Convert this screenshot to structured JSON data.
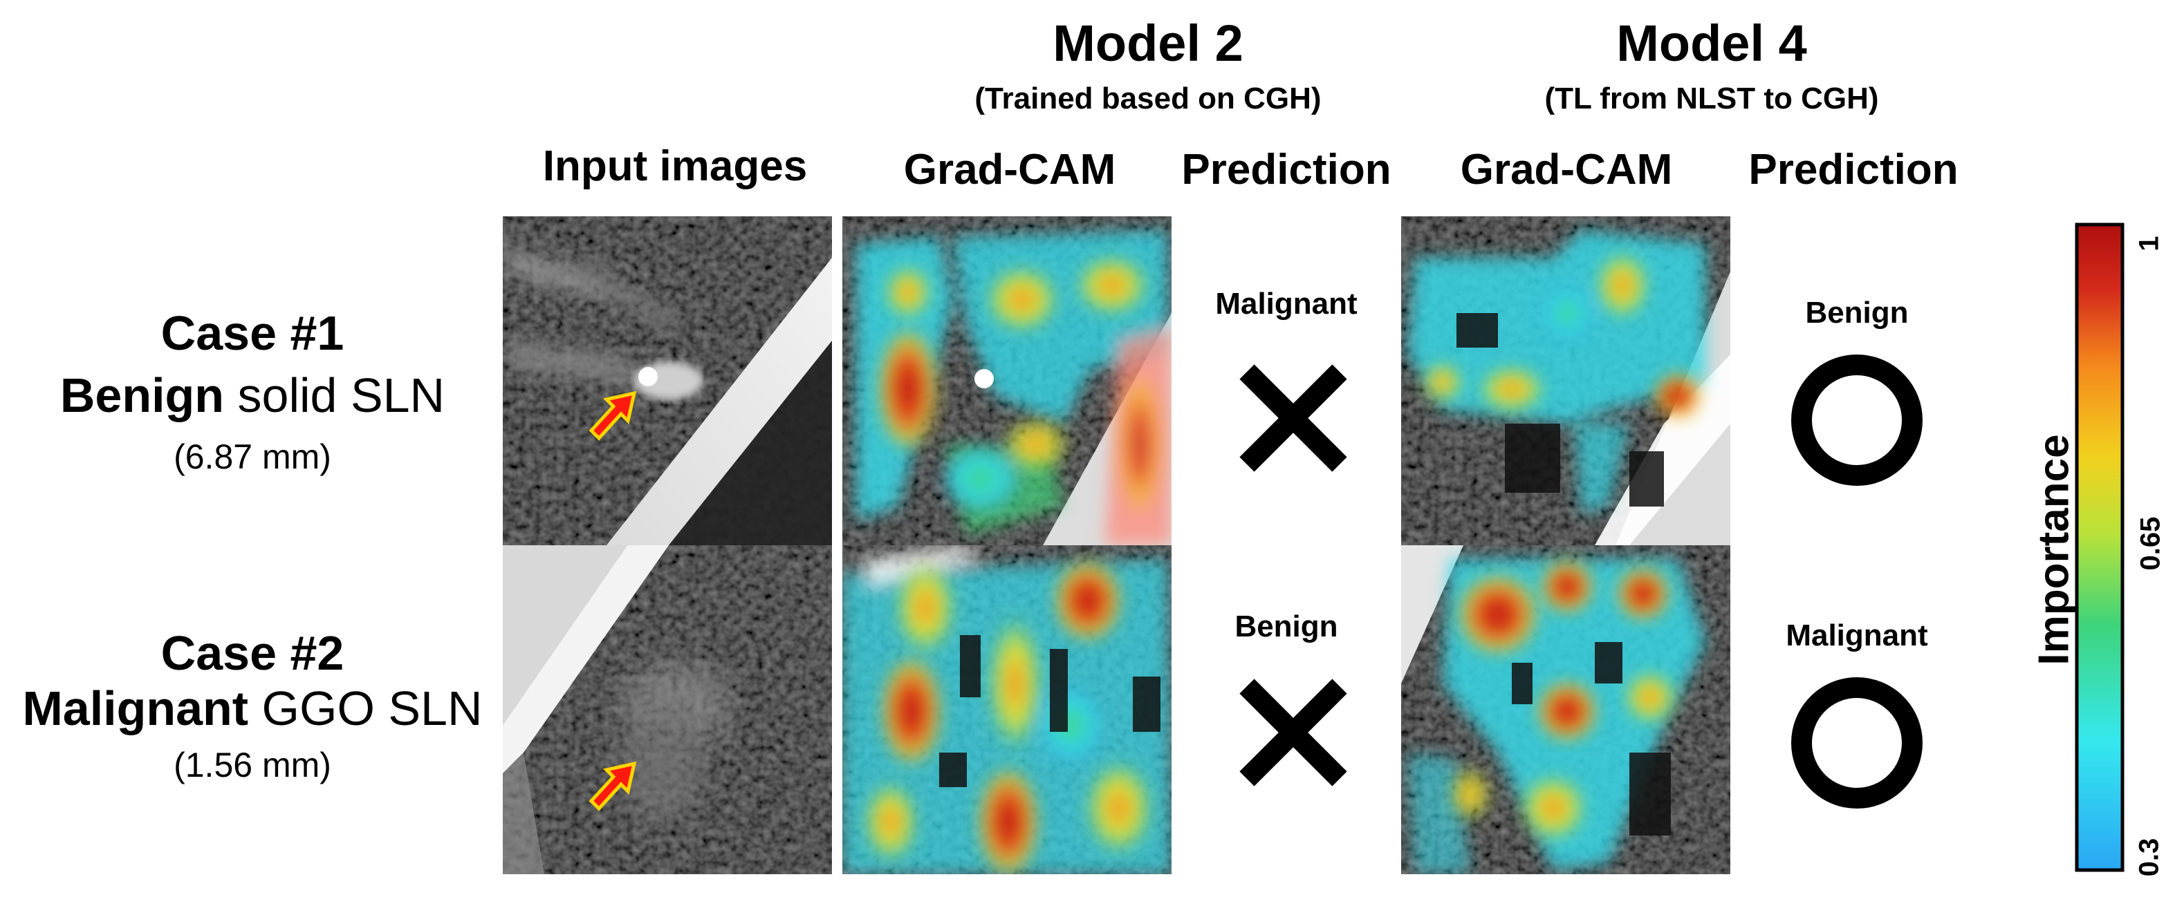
{
  "models": [
    {
      "title": "Model 2",
      "subtitle": "(Trained based on CGH)"
    },
    {
      "title": "Model 4",
      "subtitle": "(TL from NLST to CGH)"
    }
  ],
  "columns": {
    "input": "Input images",
    "gradcam": "Grad-CAM",
    "prediction": "Prediction"
  },
  "cases": [
    {
      "title": "Case #1",
      "class_word": "Benign",
      "rest": " solid SLN",
      "size": "(6.87 mm)",
      "model2": {
        "label": "Malignant",
        "mark": "cross-icon"
      },
      "model4": {
        "label": "Benign",
        "mark": "circle-icon"
      }
    },
    {
      "title": "Case #2",
      "class_word": "Malignant",
      "rest": " GGO SLN",
      "size": "(1.56 mm)",
      "model2": {
        "label": "Benign",
        "mark": "cross-icon"
      },
      "model4": {
        "label": "Malignant",
        "mark": "circle-icon"
      }
    }
  ],
  "colorbar": {
    "label": "Importance",
    "ticks": [
      "1",
      "0.65",
      "0.3"
    ],
    "min": 0.3,
    "max": 1,
    "colormap": [
      "#2aa7f5",
      "#35e8ee",
      "#3ed47a",
      "#b8e23a",
      "#f2d11e",
      "#f58a1c",
      "#d42a1b",
      "#b0100f"
    ]
  }
}
